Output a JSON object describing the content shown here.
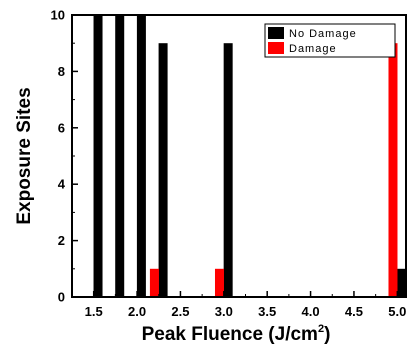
{
  "chart_data": {
    "type": "bar",
    "xlabel": "Peak Fluence (J/cm",
    "xlabel_superscript": "2",
    "xlabel_suffix": ")",
    "ylabel": "Exposure Sites",
    "xlim": [
      1.25,
      5.1
    ],
    "ylim": [
      0,
      10
    ],
    "x_ticks": [
      "1.5",
      "2.0",
      "2.5",
      "3.0",
      "3.5",
      "4.0",
      "4.5",
      "5.0"
    ],
    "x_tick_values": [
      1.5,
      2.0,
      2.5,
      3.0,
      3.5,
      4.0,
      4.5,
      5.0
    ],
    "y_ticks": [
      "0",
      "2",
      "4",
      "6",
      "8",
      "10"
    ],
    "y_tick_values": [
      0,
      2,
      4,
      6,
      8,
      10
    ],
    "legend": {
      "position": "top-right"
    },
    "series": [
      {
        "name": "No Damage",
        "color": "#000000",
        "points": [
          {
            "x": 1.55,
            "y": 10
          },
          {
            "x": 1.8,
            "y": 10
          },
          {
            "x": 2.05,
            "y": 10
          },
          {
            "x": 2.3,
            "y": 9
          },
          {
            "x": 3.05,
            "y": 9
          },
          {
            "x": 5.05,
            "y": 1
          }
        ]
      },
      {
        "name": "Damage",
        "color": "#ff0000",
        "points": [
          {
            "x": 2.2,
            "y": 1
          },
          {
            "x": 2.95,
            "y": 1
          },
          {
            "x": 4.95,
            "y": 9
          }
        ]
      }
    ]
  }
}
